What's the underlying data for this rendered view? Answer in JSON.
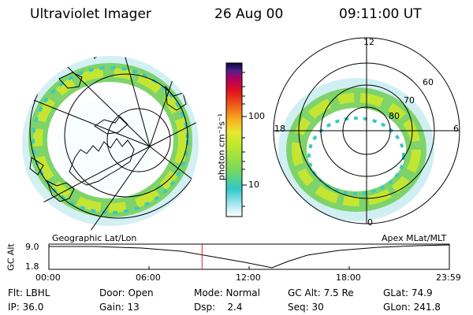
{
  "header": {
    "instrument": "Ultraviolet Imager",
    "date": "26 Aug 00",
    "time": "09:11:00 UT"
  },
  "colorbar": {
    "label": "photon cm⁻²s⁻¹",
    "ticks": [
      "100",
      "10"
    ]
  },
  "left_map": {
    "caption": "Geographic Lat/Lon"
  },
  "right_map": {
    "caption": "Apex MLat/MLT",
    "mlt_labels": {
      "top": "12",
      "left": "18",
      "right": "6",
      "bottom": "0"
    },
    "lat_labels": [
      "60",
      "70",
      "80"
    ]
  },
  "altitude_plot": {
    "ylabel": "GC Alt",
    "ymax": "9.0",
    "ymin": "1.8",
    "xticks": [
      "00:00",
      "06:00",
      "12:00",
      "18:00",
      "23:59"
    ],
    "current_time_hours": 9.18
  },
  "info": {
    "row1": {
      "filter": "Flt: LBHL",
      "door": "Door: Open",
      "mode": "Mode: Normal",
      "gcalt": "GC Alt: 7.5 Re",
      "glat": "GLat:  74.9"
    },
    "row2": {
      "ip": "IP: 36.0",
      "gain": "Gain: 13",
      "dsp": "Dsp:    2.4",
      "seq": "Seq: 30",
      "glon": "GLon: 241.8"
    }
  },
  "colors": {
    "colorbar_stops": [
      "#ffffff",
      "#a8e8f0",
      "#30c8c8",
      "#78d860",
      "#b8e830",
      "#e8e830",
      "#f8b020",
      "#f06018",
      "#e01020",
      "#b00060",
      "#502088",
      "#080840"
    ],
    "marker": "#e02020"
  }
}
